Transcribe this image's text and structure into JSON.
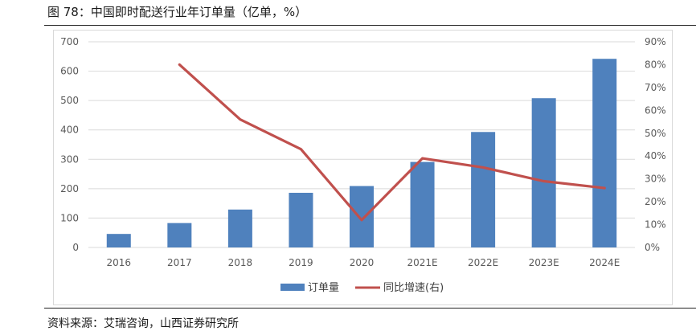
{
  "figure": {
    "title": "图 78：中国即时配送行业年订单量（亿单，%）",
    "source": "资料来源：艾瑞咨询，山西证券研究所"
  },
  "colors": {
    "bar": "#4f81bd",
    "line": "#c0504d",
    "grid": "#d9d9d9",
    "axis_text": "#595959"
  },
  "chart_data": {
    "type": "bar",
    "categories": [
      "2016",
      "2017",
      "2018",
      "2019",
      "2020",
      "2021E",
      "2022E",
      "2023E",
      "2024E"
    ],
    "series": [
      {
        "name": "订单量",
        "type": "bar",
        "axis": "left",
        "values": [
          46,
          83,
          129,
          186,
          209,
          291,
          393,
          508,
          642
        ]
      },
      {
        "name": "同比增速(右)",
        "type": "line",
        "axis": "right",
        "values": [
          null,
          0.8,
          0.56,
          0.43,
          0.12,
          0.39,
          0.35,
          0.29,
          0.26
        ]
      }
    ],
    "y_left": {
      "min": 0,
      "max": 700,
      "step": 100,
      "ticks": [
        "0",
        "100",
        "200",
        "300",
        "400",
        "500",
        "600",
        "700"
      ]
    },
    "y_right": {
      "min": 0,
      "max": 0.9,
      "step": 0.1,
      "ticks": [
        "0%",
        "10%",
        "20%",
        "30%",
        "40%",
        "50%",
        "60%",
        "70%",
        "80%",
        "90%"
      ]
    },
    "grid": true,
    "legend": {
      "position": "bottom",
      "labels": [
        "订单量",
        "同比增速(右)"
      ]
    }
  }
}
